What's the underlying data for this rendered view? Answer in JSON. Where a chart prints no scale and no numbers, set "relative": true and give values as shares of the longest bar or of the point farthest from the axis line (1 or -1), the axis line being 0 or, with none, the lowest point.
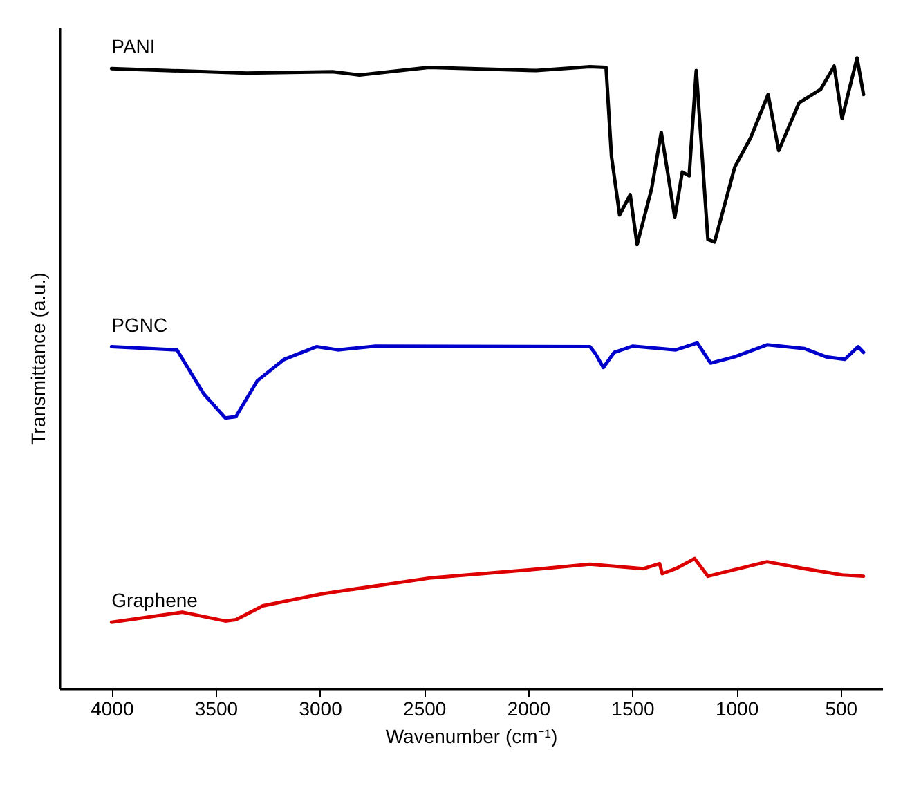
{
  "chart_data": {
    "type": "line",
    "xlabel": "Wavenumber (cm⁻¹)",
    "ylabel": "Transmittance (a.u.)",
    "relative": true,
    "xlim": [
      4250,
      300
    ],
    "xticks": [
      4000,
      3500,
      3000,
      2500,
      2000,
      1500,
      1000,
      500
    ],
    "series": [
      {
        "name": "PANI",
        "color": "#000000",
        "x": [
          4000,
          3351,
          2939,
          2810,
          2476,
          1961,
          1703,
          1626,
          1600,
          1561,
          1510,
          1477,
          1407,
          1361,
          1296,
          1260,
          1227,
          1193,
          1137,
          1105,
          1008,
          931,
          848,
          797,
          699,
          596,
          531,
          493,
          421,
          390
        ],
        "values": [
          0.983,
          0.976,
          0.978,
          0.973,
          0.985,
          0.98,
          0.986,
          0.985,
          0.844,
          0.751,
          0.783,
          0.704,
          0.793,
          0.882,
          0.747,
          0.819,
          0.813,
          0.98,
          0.712,
          0.708,
          0.827,
          0.874,
          0.942,
          0.853,
          0.929,
          0.95,
          0.987,
          0.904,
          1,
          0.942
        ]
      },
      {
        "name": "PGNC",
        "color": "#0000cc",
        "x": [
          4000,
          3686,
          3557,
          3454,
          3403,
          3300,
          3171,
          3016,
          2913,
          2733,
          1703,
          1677,
          1639,
          1587,
          1497,
          1291,
          1188,
          1124,
          1008,
          853,
          673,
          570,
          480,
          416,
          390
        ],
        "values": [
          0.542,
          0.537,
          0.467,
          0.429,
          0.431,
          0.488,
          0.522,
          0.542,
          0.537,
          0.543,
          0.542,
          0.531,
          0.509,
          0.533,
          0.543,
          0.537,
          0.548,
          0.516,
          0.526,
          0.545,
          0.539,
          0.526,
          0.522,
          0.542,
          0.533
        ]
      },
      {
        "name": "Graphene",
        "color": "#dd0000",
        "x": [
          4000,
          3660,
          3454,
          3403,
          3274,
          2991,
          2476,
          1961,
          1703,
          1446,
          1369,
          1356,
          1291,
          1201,
          1137,
          853,
          673,
          493,
          390
        ],
        "values": [
          0.105,
          0.121,
          0.107,
          0.109,
          0.131,
          0.15,
          0.175,
          0.189,
          0.197,
          0.19,
          0.198,
          0.182,
          0.19,
          0.206,
          0.178,
          0.201,
          0.19,
          0.18,
          0.178
        ]
      }
    ]
  }
}
